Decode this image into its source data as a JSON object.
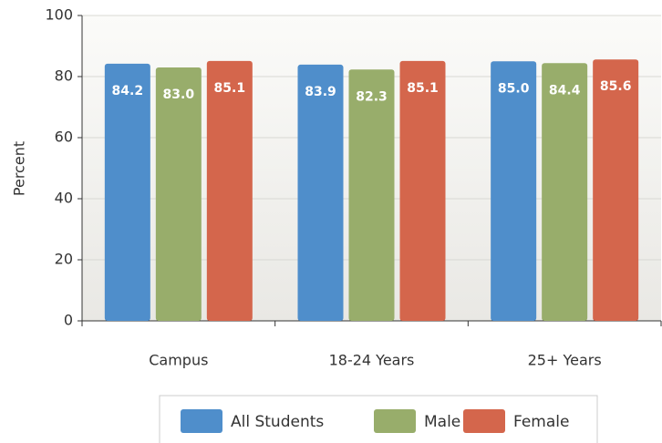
{
  "chart_data": {
    "type": "bar",
    "categories": [
      "Campus",
      "18-24 Years",
      "25+ Years"
    ],
    "series": [
      {
        "name": "All Students",
        "color": "#4f8ecb",
        "values": [
          84.2,
          83.9,
          85.0
        ],
        "value_labels": [
          "84.2",
          "83.9",
          "85.0"
        ]
      },
      {
        "name": "Male",
        "color": "#98ad6b",
        "values": [
          83.0,
          82.3,
          84.4
        ],
        "value_labels": [
          "83.0",
          "82.3",
          "84.4"
        ]
      },
      {
        "name": "Female",
        "color": "#d4664c",
        "values": [
          85.1,
          85.1,
          85.6
        ],
        "value_labels": [
          "85.1",
          "85.1",
          "85.6"
        ]
      }
    ],
    "ylabel": "Percent",
    "ylim": [
      0,
      100
    ],
    "yticks": [
      0,
      20,
      40,
      60,
      80,
      100
    ],
    "grid": true,
    "legend": "bottom"
  }
}
